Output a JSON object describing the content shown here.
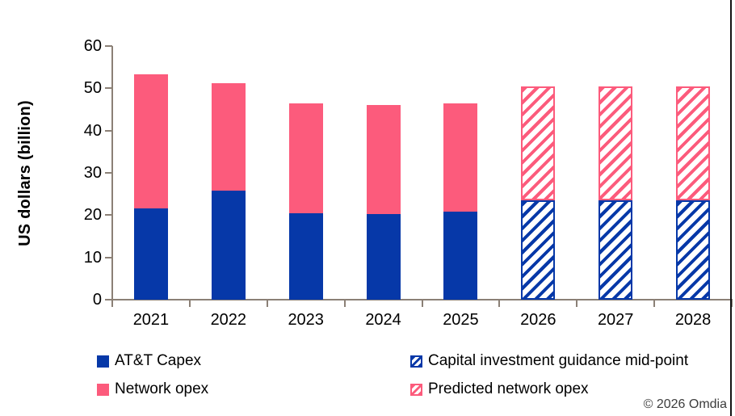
{
  "chart_data": {
    "type": "bar",
    "stacked": true,
    "title": "",
    "xlabel": "",
    "ylabel": "US dollars (billion)",
    "ylim": [
      0,
      60
    ],
    "yticks": [
      0,
      10,
      20,
      30,
      40,
      50,
      60
    ],
    "grid": false,
    "legend_position": "bottom",
    "categories": [
      "2021",
      "2022",
      "2023",
      "2024",
      "2025",
      "2026",
      "2027",
      "2028"
    ],
    "series": [
      {
        "name": "AT&T Capex",
        "style": "solid",
        "color_key": "blue",
        "values": [
          21.6,
          25.8,
          20.5,
          20.3,
          20.8,
          null,
          null,
          null
        ]
      },
      {
        "name": "Network opex",
        "style": "solid",
        "color_key": "pink",
        "values": [
          31.8,
          25.5,
          25.9,
          25.8,
          25.6,
          null,
          null,
          null
        ]
      },
      {
        "name": "Capital investment guidance mid-point",
        "style": "hatch",
        "color_key": "blue",
        "values": [
          null,
          null,
          null,
          null,
          null,
          23.5,
          23.5,
          23.5
        ]
      },
      {
        "name": "Predicted network opex",
        "style": "hatch",
        "color_key": "pink",
        "values": [
          null,
          null,
          null,
          null,
          null,
          27.0,
          27.0,
          27.0
        ]
      }
    ]
  },
  "colors": {
    "blue": "#0638A8",
    "pink": "#FC5B7C",
    "axis": "#8B8076",
    "text": "#000000",
    "copyright": "#3C3C3C"
  },
  "footer": {
    "copyright": "© 2026 Omdia"
  }
}
